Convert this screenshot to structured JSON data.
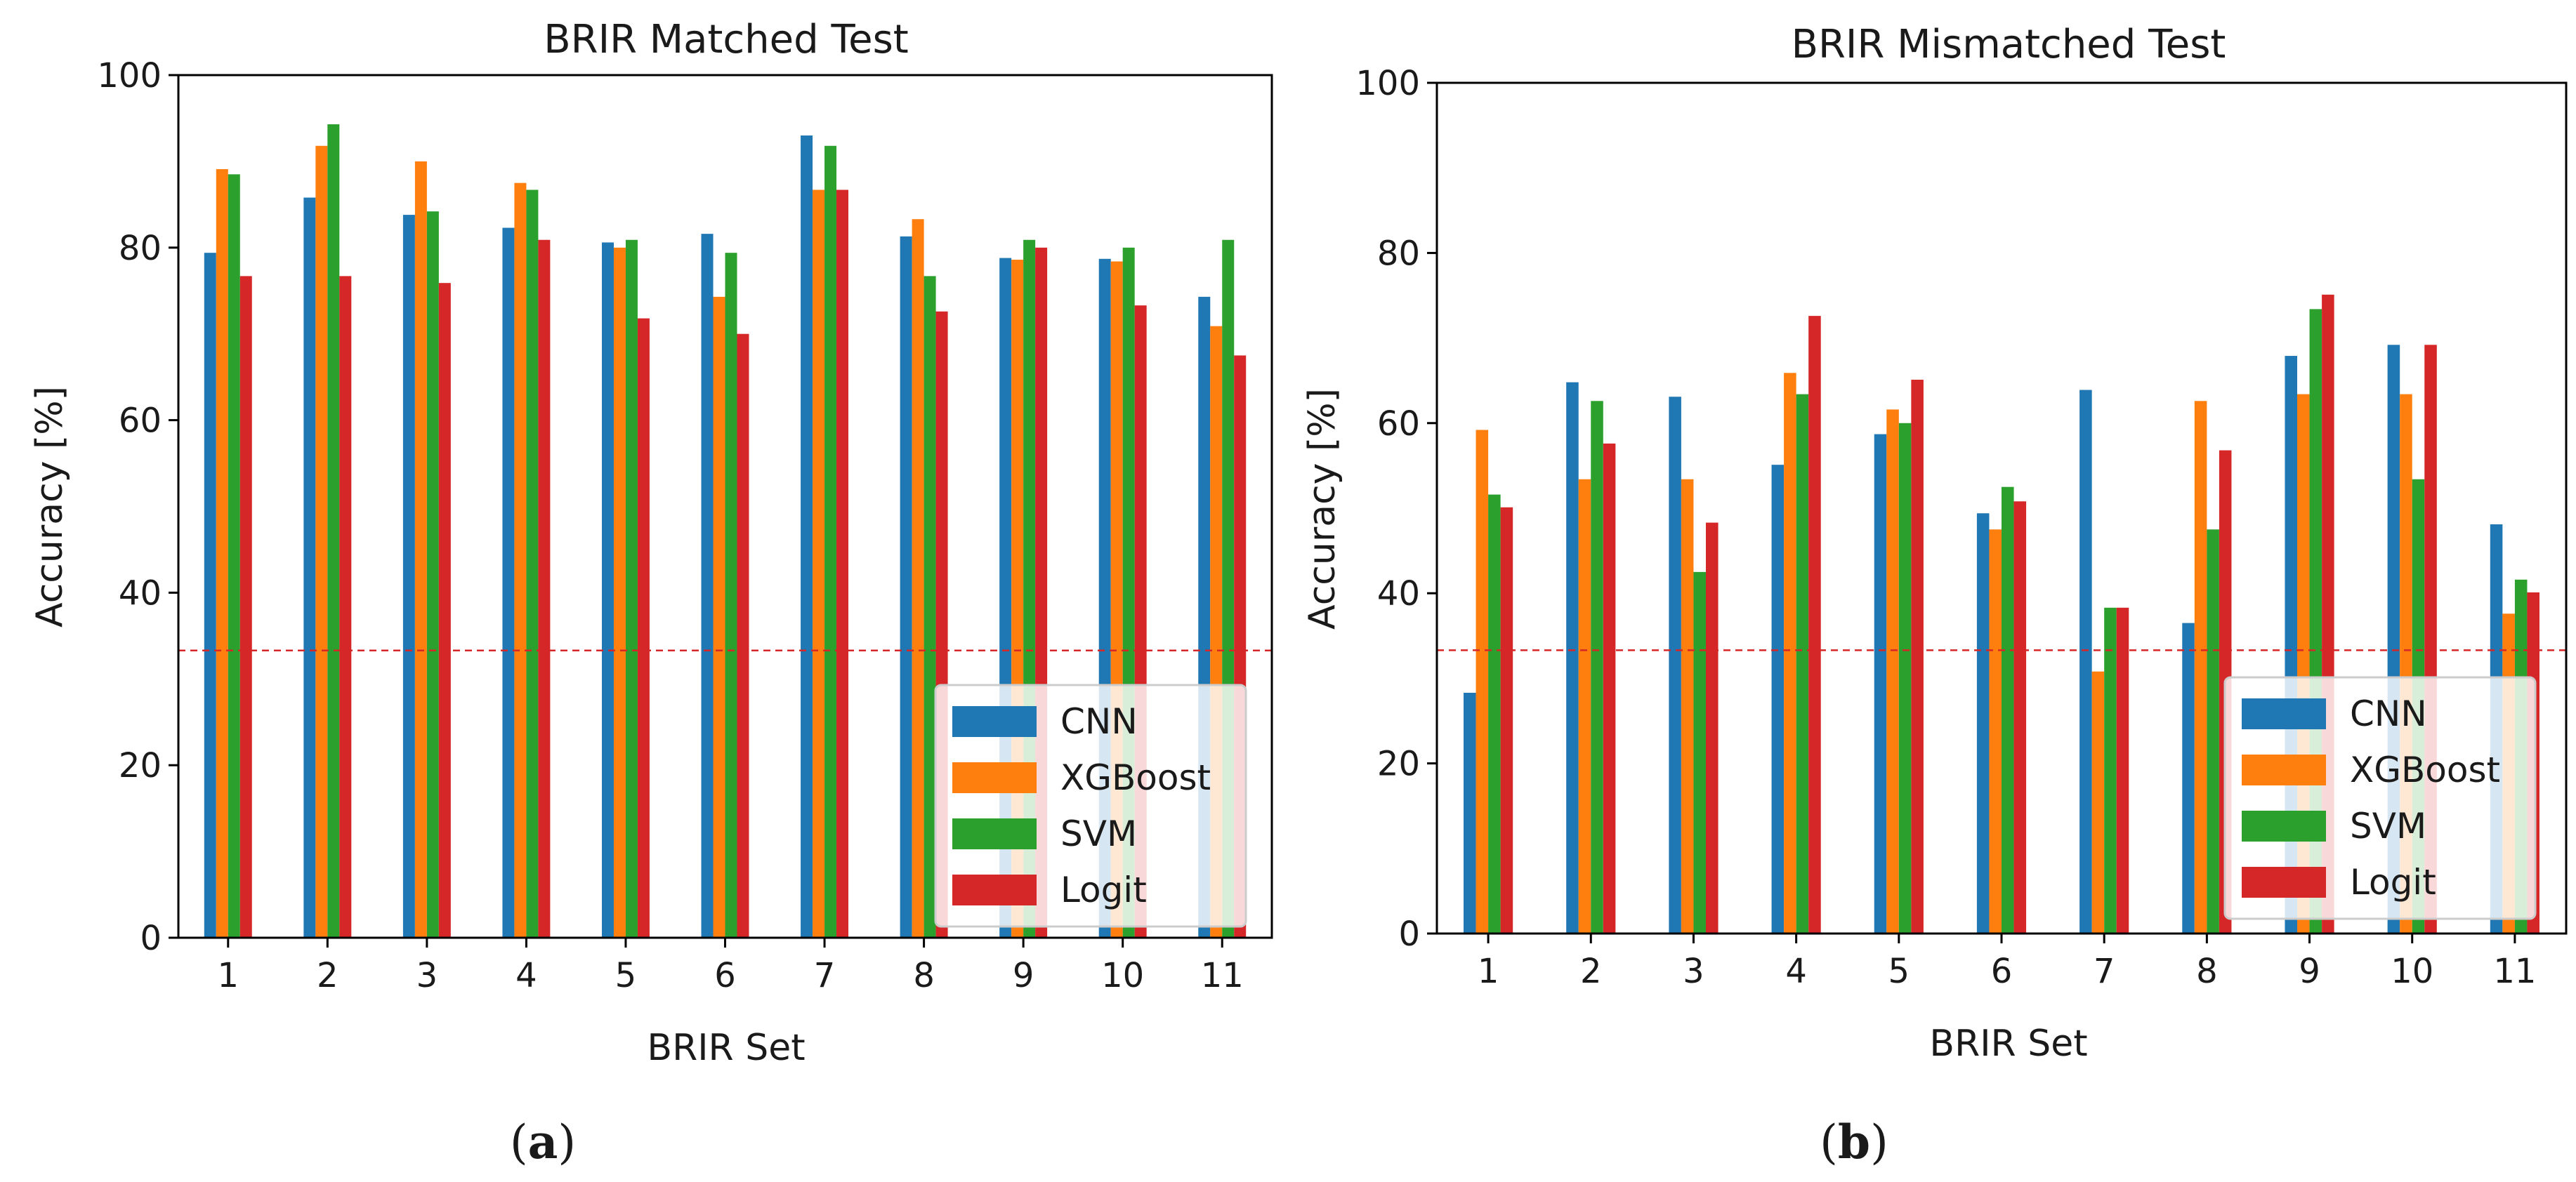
{
  "chart_data": [
    {
      "type": "bar",
      "panel": "(a)",
      "panel_letter": "a",
      "title": "BRIR Matched Test",
      "xlabel": "BRIR Set",
      "ylabel": "Accuracy [%]",
      "ylim": [
        0,
        100
      ],
      "yticks": [
        0,
        20,
        40,
        60,
        80,
        100
      ],
      "categories": [
        "1",
        "2",
        "3",
        "4",
        "5",
        "6",
        "7",
        "8",
        "9",
        "10",
        "11"
      ],
      "chance_level": 33.3,
      "legend_position": "lower-right",
      "series": [
        {
          "name": "CNN",
          "color": "#1f77b4",
          "values": [
            79.4,
            85.8,
            83.8,
            82.3,
            80.6,
            81.6,
            93.0,
            81.3,
            78.8,
            78.7,
            74.3
          ]
        },
        {
          "name": "XGBoost",
          "color": "#ff7f0e",
          "values": [
            89.1,
            91.8,
            90.0,
            87.5,
            80.0,
            74.3,
            86.7,
            83.3,
            78.6,
            78.4,
            70.9
          ]
        },
        {
          "name": "SVM",
          "color": "#2ca02c",
          "values": [
            88.5,
            94.3,
            84.2,
            86.7,
            80.9,
            79.4,
            91.8,
            76.7,
            80.9,
            80.0,
            80.9
          ]
        },
        {
          "name": "Logit",
          "color": "#d62728",
          "values": [
            76.7,
            76.7,
            75.9,
            80.9,
            71.8,
            70.0,
            86.7,
            72.6,
            80.0,
            73.3,
            67.5
          ]
        }
      ]
    },
    {
      "type": "bar",
      "panel": "(b)",
      "panel_letter": "b",
      "title": "BRIR Mismatched Test",
      "xlabel": "BRIR Set",
      "ylabel": "Accuracy [%]",
      "ylim": [
        0,
        100
      ],
      "yticks": [
        0,
        20,
        40,
        60,
        80,
        100
      ],
      "categories": [
        "1",
        "2",
        "3",
        "4",
        "5",
        "6",
        "7",
        "8",
        "9",
        "10",
        "11"
      ],
      "chance_level": 33.3,
      "legend_position": "lower-right",
      "series": [
        {
          "name": "CNN",
          "color": "#1f77b4",
          "values": [
            28.3,
            64.8,
            63.1,
            55.1,
            58.7,
            49.4,
            63.9,
            36.5,
            67.9,
            69.2,
            48.1
          ]
        },
        {
          "name": "XGBoost",
          "color": "#ff7f0e",
          "values": [
            59.2,
            53.4,
            53.4,
            65.9,
            61.6,
            47.5,
            30.8,
            62.6,
            63.4,
            63.4,
            37.6
          ]
        },
        {
          "name": "SVM",
          "color": "#2ca02c",
          "values": [
            51.6,
            62.6,
            42.5,
            63.4,
            60.0,
            52.5,
            38.3,
            47.5,
            73.4,
            53.4,
            41.6
          ]
        },
        {
          "name": "Logit",
          "color": "#d62728",
          "values": [
            50.1,
            57.6,
            48.3,
            72.6,
            65.1,
            50.8,
            38.3,
            56.8,
            75.1,
            69.2,
            40.1
          ]
        }
      ]
    }
  ]
}
